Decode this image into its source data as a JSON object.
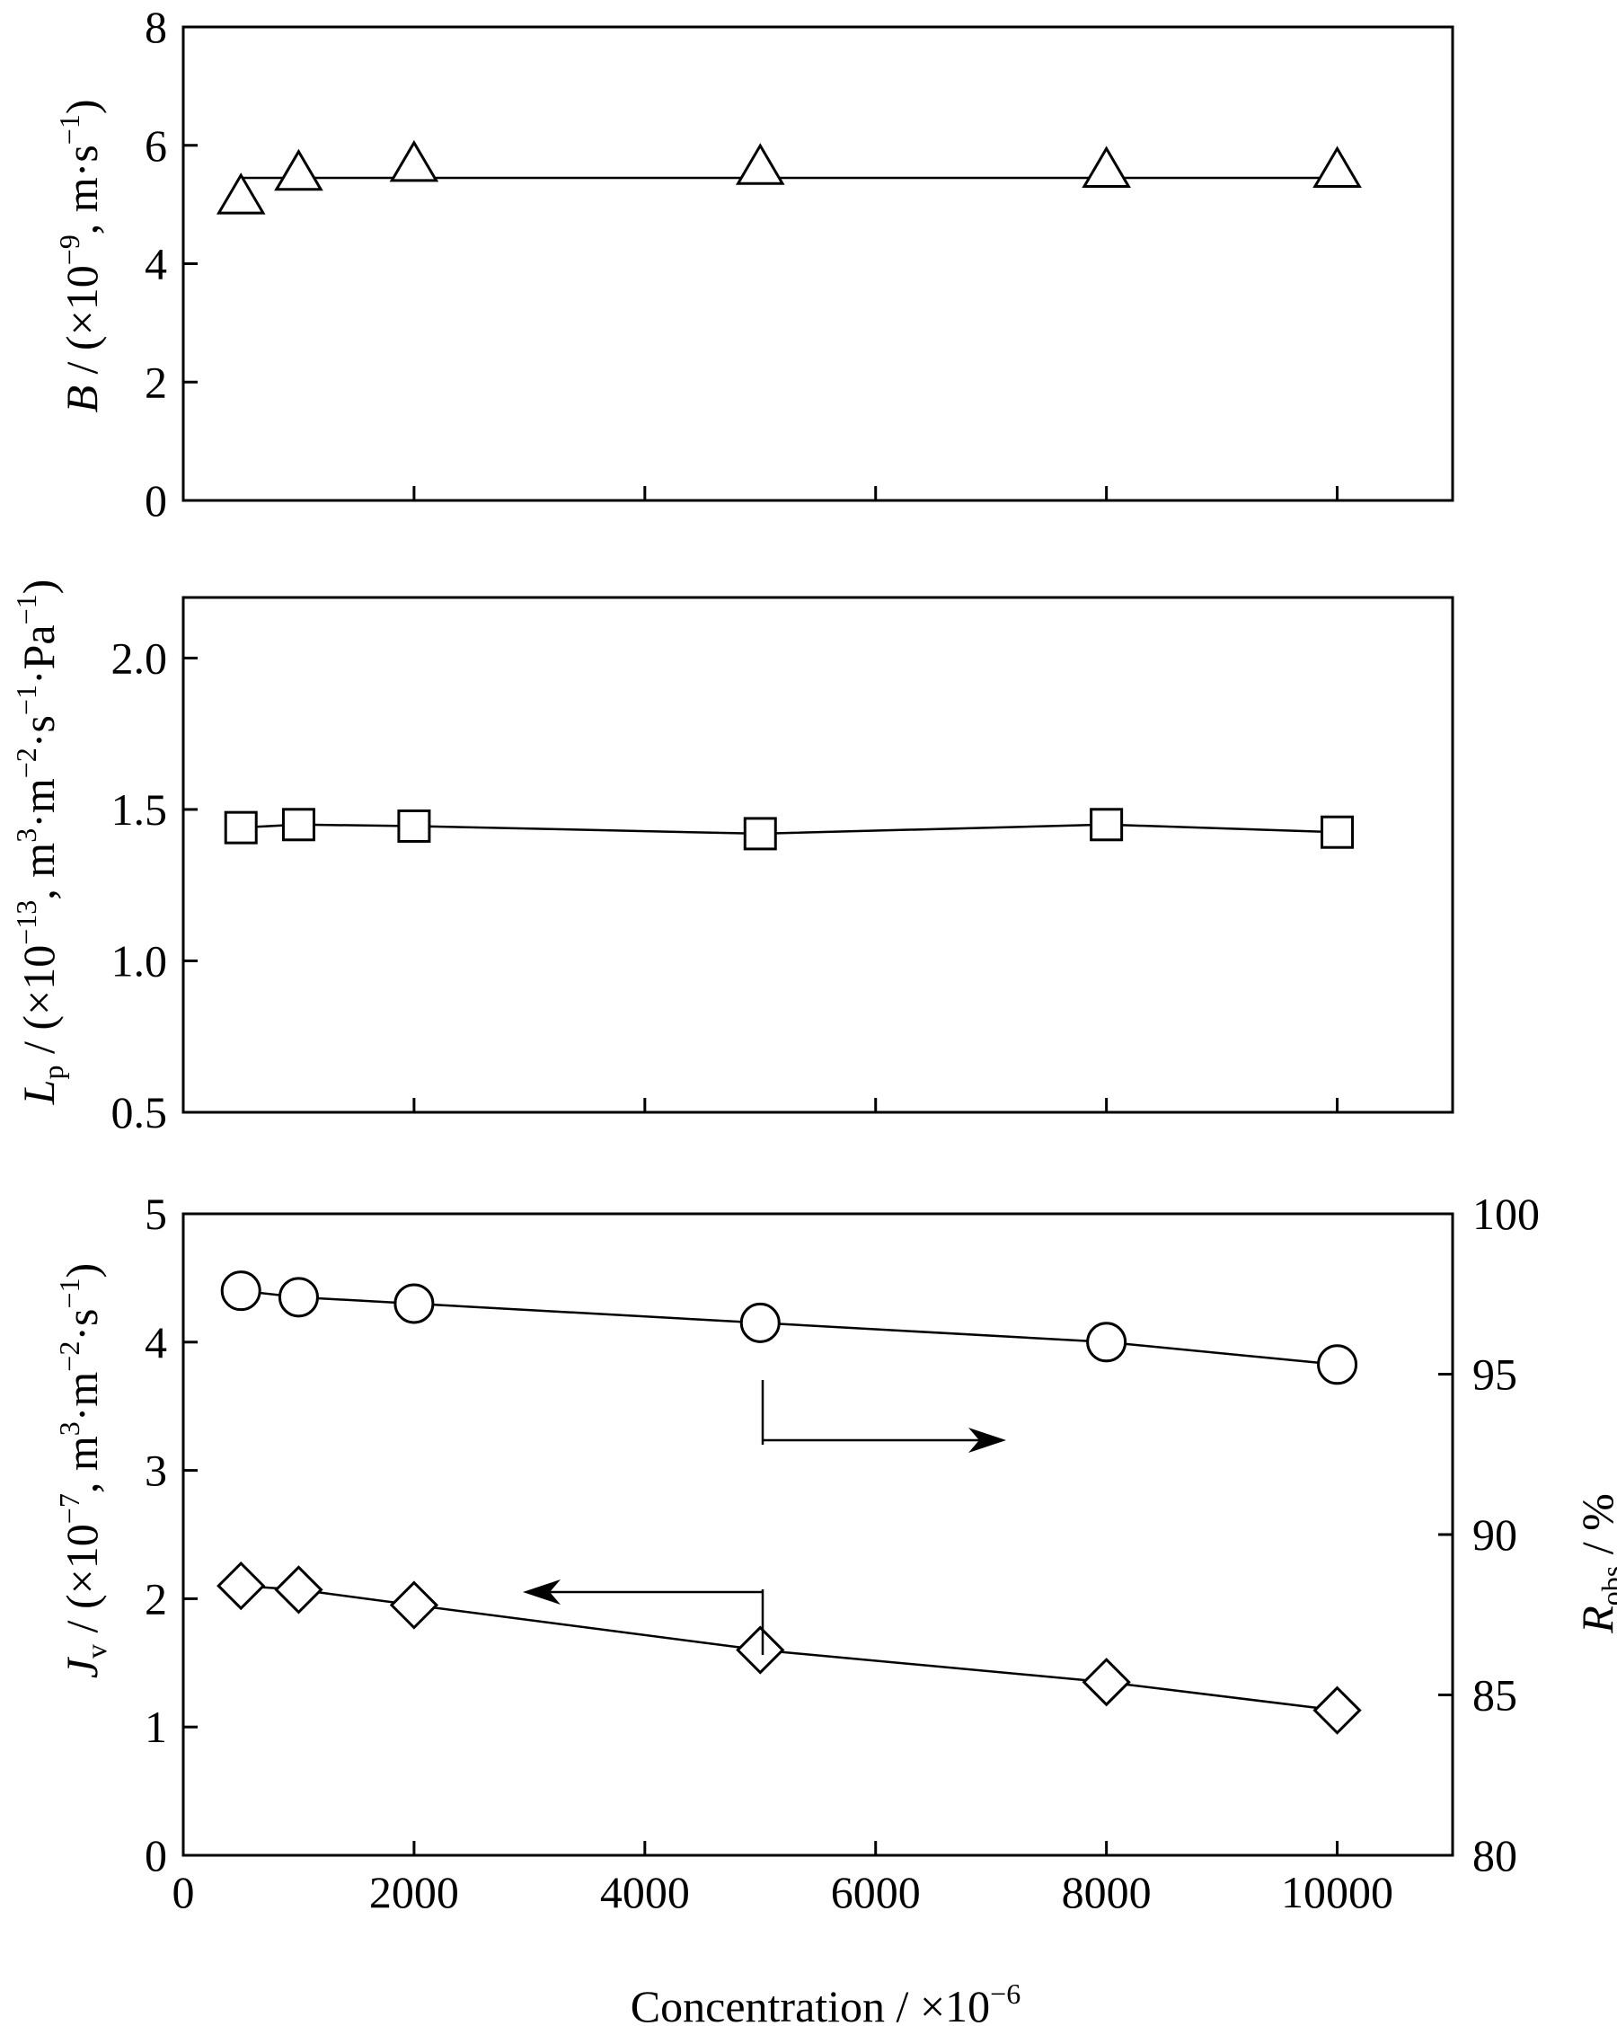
{
  "figure": {
    "xlabel": "Concentration / ×10",
    "xlabel_exp": "−6"
  },
  "chart_data": [
    {
      "type": "line",
      "panel": "top",
      "marker": "triangle",
      "ylabel": {
        "main": "B",
        "rest": " / (×10",
        "exp1": "−9",
        "mid": ", m·s",
        "exp2": "−1",
        "end": ")"
      },
      "xlim": [
        0,
        11000
      ],
      "ylim": [
        0,
        8
      ],
      "yticks": [
        0,
        2,
        4,
        6,
        8
      ],
      "ytick_labels": [
        "0",
        "2",
        "4",
        "6",
        "8"
      ],
      "xticks": [
        0,
        2000,
        4000,
        6000,
        8000,
        10000
      ],
      "series": [
        {
          "x": [
            500,
            1000,
            2000,
            5000,
            8000,
            10000
          ],
          "y": [
            5.1,
            5.5,
            5.65,
            5.6,
            5.55,
            5.55
          ]
        }
      ],
      "fit_line": {
        "x": [
          500,
          10000
        ],
        "y": [
          5.45,
          5.45
        ]
      }
    },
    {
      "type": "line",
      "panel": "middle",
      "marker": "square",
      "ylabel": {
        "main": "L",
        "sub": "p",
        "rest": " / (×10",
        "exp1": "−13",
        "mid": ", m",
        "exp2": "3",
        "mid2": "·m",
        "exp3": "−2",
        "mid3": "·s",
        "exp4": "−1",
        "mid4": "·Pa",
        "exp5": "−1",
        "end": ")"
      },
      "xlim": [
        0,
        11000
      ],
      "ylim": [
        0.5,
        2.2
      ],
      "yticks": [
        0.5,
        1.0,
        1.5,
        2.0
      ],
      "ytick_labels": [
        "0.5",
        "1.0",
        "1.5",
        "2.0"
      ],
      "xticks": [
        0,
        2000,
        4000,
        6000,
        8000,
        10000
      ],
      "series": [
        {
          "x": [
            500,
            1000,
            2000,
            5000,
            8000,
            10000
          ],
          "y": [
            1.44,
            1.45,
            1.445,
            1.42,
            1.45,
            1.425
          ]
        }
      ]
    },
    {
      "type": "line",
      "panel": "bottom",
      "ylabel": {
        "main": "J",
        "sub": "v",
        "rest": " / (×10",
        "exp1": "−7",
        "mid": ", m",
        "exp2": "3",
        "mid2": "·m",
        "exp3": "−2",
        "mid3": "·s",
        "exp4": "−1",
        "end": ")"
      },
      "ylabel_right": {
        "main": "R",
        "sub": "obs",
        "rest": " / %"
      },
      "xlim": [
        0,
        11000
      ],
      "ylim": [
        0,
        5
      ],
      "ylim_right": [
        80,
        100
      ],
      "yticks": [
        0,
        1,
        2,
        3,
        4,
        5
      ],
      "ytick_labels": [
        "0",
        "1",
        "2",
        "3",
        "4",
        "5"
      ],
      "yticks_right": [
        80,
        85,
        90,
        95,
        100
      ],
      "ytick_labels_right": [
        "80",
        "85",
        "90",
        "95",
        "100"
      ],
      "xticks": [
        0,
        2000,
        4000,
        6000,
        8000,
        10000
      ],
      "xtick_labels": [
        "0",
        "2000",
        "4000",
        "6000",
        "8000",
        "10000"
      ],
      "series": [
        {
          "axis": "right",
          "marker": "circle",
          "x": [
            500,
            1000,
            2000,
            5000,
            8000,
            10000
          ],
          "y": [
            97.6,
            97.4,
            97.2,
            96.6,
            96.0,
            95.3
          ]
        },
        {
          "axis": "left",
          "marker": "diamond",
          "x": [
            500,
            1000,
            2000,
            5000,
            8000,
            10000
          ],
          "y": [
            2.1,
            2.07,
            1.95,
            1.6,
            1.35,
            1.13
          ]
        }
      ]
    }
  ]
}
